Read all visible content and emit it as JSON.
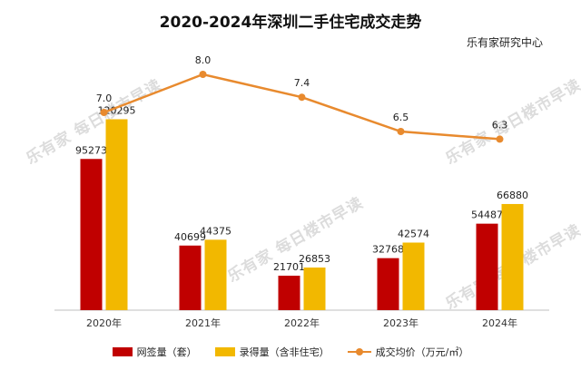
{
  "title": "2020-2024年深圳二手住宅成交走势",
  "source": "乐有家研究中心",
  "watermark": "乐有家 每日楼市早读",
  "colors": {
    "series1": "#C00000",
    "series2": "#F2B800",
    "line": "#E88A2E"
  },
  "chart_data": {
    "type": "bar",
    "categories": [
      "2020年",
      "2021年",
      "2022年",
      "2023年",
      "2024年"
    ],
    "series": [
      {
        "name": "网签量（套）",
        "values": [
          95273,
          40699,
          21701,
          32768,
          54487
        ]
      },
      {
        "name": "录得量（含非住宅）",
        "values": [
          120295,
          44375,
          26853,
          42574,
          66880
        ]
      }
    ],
    "line_series": {
      "name": "成交均价（万元/㎡）",
      "values": [
        7.0,
        8.0,
        7.4,
        6.5,
        6.3
      ]
    },
    "bar_ylim": [
      0,
      140000
    ],
    "line_ylim": [
      0,
      9.0
    ]
  }
}
